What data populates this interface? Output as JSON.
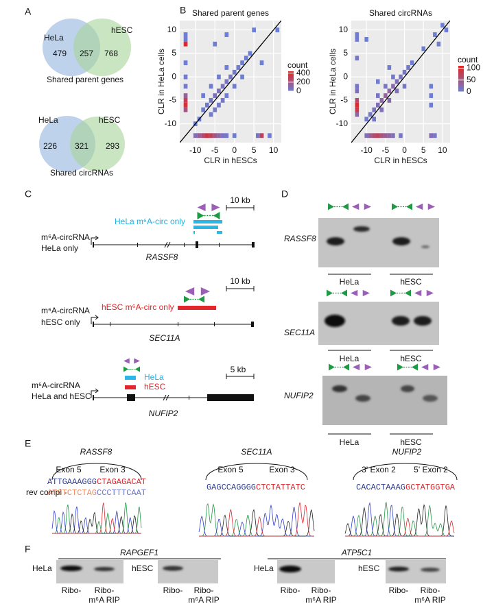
{
  "panel_labels": [
    "A",
    "B",
    "C",
    "D",
    "E",
    "F"
  ],
  "venn": [
    {
      "left_label": "HeLa",
      "right_label": "hESC",
      "left_only": 479,
      "shared": 257,
      "right_only": 768,
      "caption": "Shared parent genes"
    },
    {
      "left_label": "HeLa",
      "right_label": "hESC",
      "left_only": 226,
      "shared": 321,
      "right_only": 293,
      "caption": "Shared circRNAs"
    }
  ],
  "chart_data": [
    {
      "type": "heatmap",
      "title": "Shared parent genes",
      "x_label": "CLR in hESCs",
      "y_label": "CLR in HeLa cells",
      "xlim": [
        -14,
        12
      ],
      "ylim": [
        -14,
        12
      ],
      "xticks": [
        -10,
        -5,
        0,
        5,
        10
      ],
      "yticks": [
        -10,
        -5,
        0,
        5,
        10
      ],
      "legend_title": "count",
      "clim": [
        0,
        440
      ],
      "legend_ticks": [
        0,
        200,
        400
      ],
      "colors": [
        "#6b7fd7",
        "#e8231c"
      ],
      "x": [
        -12.5,
        -12.5,
        -12.5,
        -12.5,
        -12.5,
        -12.5,
        -12.5,
        -12.5,
        -12.5,
        -12.5,
        -10,
        -9,
        -8,
        -7,
        -6,
        -5,
        -4,
        -3,
        -2,
        0,
        6,
        7,
        9,
        -10,
        -9,
        -8,
        -7,
        -6,
        -5,
        -4,
        -3,
        -2,
        -1,
        0,
        1,
        2,
        3,
        4,
        -6,
        -4,
        -2,
        0,
        -8,
        -6,
        -4,
        -2,
        2,
        -3,
        -5,
        11,
        7,
        -5,
        -2,
        5
      ],
      "y": [
        9,
        8,
        7,
        3,
        0,
        -2,
        -4,
        -5,
        -6,
        -7,
        -12.5,
        -12.5,
        -12.5,
        -12.5,
        -12.5,
        -12.5,
        -12.5,
        -12.5,
        -12.5,
        -12.5,
        -12.5,
        -12.5,
        -12.5,
        -10,
        -9,
        -7,
        -6,
        -5,
        -4,
        -3,
        -2,
        -1,
        0,
        1,
        2,
        3,
        4,
        5,
        -8,
        -6,
        -4,
        -2,
        -4,
        -2,
        0,
        2,
        0,
        -5,
        -7,
        10,
        3,
        7,
        9,
        10
      ],
      "values": [
        10,
        20,
        400,
        10,
        20,
        30,
        150,
        300,
        380,
        200,
        80,
        150,
        250,
        350,
        300,
        200,
        120,
        60,
        30,
        10,
        50,
        300,
        10,
        5,
        8,
        15,
        25,
        40,
        60,
        70,
        60,
        50,
        40,
        30,
        20,
        12,
        8,
        5,
        20,
        30,
        25,
        15,
        15,
        15,
        10,
        8,
        10,
        35,
        25,
        3,
        3,
        3,
        3,
        3
      ]
    },
    {
      "type": "heatmap",
      "title": "Shared circRNAs",
      "x_label": "CLR in hESCs",
      "y_label": "CLR in HeLa cells",
      "xlim": [
        -14,
        12
      ],
      "ylim": [
        -14,
        12
      ],
      "xticks": [
        -10,
        -5,
        0,
        5,
        10
      ],
      "yticks": [
        -10,
        -5,
        0,
        5,
        10
      ],
      "legend_title": "count",
      "clim": [
        0,
        110
      ],
      "legend_ticks": [
        0,
        50,
        100
      ],
      "colors": [
        "#6b7fd7",
        "#e8231c"
      ],
      "x": [
        -12.5,
        -12.5,
        -12.5,
        -12.5,
        -12.5,
        -12.5,
        -12.5,
        -12.5,
        -12.5,
        -10,
        -9,
        -8,
        -7,
        -6,
        -5,
        -4,
        -3,
        -1,
        7,
        8,
        -10,
        -9,
        -8,
        -7,
        -6,
        -5,
        -4,
        -3,
        -2,
        -1,
        0,
        1,
        2,
        -6,
        -4,
        -2,
        -7,
        -5,
        -3,
        0,
        -8,
        5,
        8,
        10,
        11,
        9,
        -7,
        -4,
        7,
        7,
        7,
        -10
      ],
      "y": [
        9,
        8,
        4,
        -2,
        -3,
        -5,
        -6,
        -7,
        -8,
        -12.5,
        -12.5,
        -12.5,
        -12.5,
        -12.5,
        -12.5,
        -12.5,
        -12.5,
        -12.5,
        -12.5,
        -12.5,
        -9,
        -8,
        -7,
        -6,
        -5,
        -4,
        -3,
        -2,
        -1,
        0,
        1,
        2,
        3,
        -7,
        -5,
        -3,
        -4,
        -2,
        0,
        -2,
        -9,
        6,
        9,
        11,
        10,
        7,
        -1,
        2,
        -2,
        -4,
        -6,
        8
      ],
      "values": [
        5,
        5,
        10,
        10,
        20,
        60,
        100,
        80,
        30,
        20,
        40,
        60,
        70,
        50,
        40,
        30,
        20,
        10,
        20,
        10,
        5,
        8,
        12,
        20,
        30,
        35,
        30,
        25,
        20,
        12,
        10,
        6,
        4,
        18,
        22,
        18,
        12,
        12,
        8,
        8,
        8,
        3,
        3,
        3,
        3,
        3,
        4,
        4,
        3,
        3,
        3,
        3
      ]
    }
  ],
  "gene_models": [
    {
      "label": [
        "m⁶A-circRNA",
        "HeLa only"
      ],
      "gene": "RASSF8",
      "scale": "10 kb",
      "circ_label": "HeLa m⁶A-circ only"
    },
    {
      "label": [
        "m⁶A-circRNA",
        "hESC only"
      ],
      "gene": "SEC11A",
      "scale": "10 kb",
      "circ_label": "hESC m⁶A-circ only"
    },
    {
      "label": [
        "m⁶A-circRNA",
        "HeLa and hESC"
      ],
      "gene": "NUFIP2",
      "scale": "5 kb",
      "circ_labels": [
        "HeLa",
        "hESC"
      ]
    }
  ],
  "gels": {
    "genes": [
      "RASSF8",
      "SEC11A",
      "NUFIP2"
    ],
    "groups": [
      "HeLa",
      "hESC"
    ]
  },
  "sequencing": [
    {
      "gene": "RASSF8",
      "exons": [
        "Exon 5",
        "Exon 3"
      ],
      "sequence": [
        "ATTGAAAGGG",
        "CTAGAGACAT"
      ],
      "rev_compl_label": "rev compl -",
      "rev_compl": [
        "ATGTCTCTAG",
        "CCCTTTCAAT"
      ]
    },
    {
      "gene": "SEC11A",
      "exons": [
        "Exon 5",
        "Exon 3"
      ],
      "sequence": [
        "GAGCCAGGGG",
        "CTCTATTATC"
      ]
    },
    {
      "gene": "NUFIP2",
      "exons": [
        "3' Exon 2",
        "5' Exon 2"
      ],
      "sequence": [
        "CACACTAAAG",
        "GCTATGGTGA"
      ]
    }
  ],
  "rip": {
    "genes": [
      "RAPGEF1",
      "ATP5C1"
    ],
    "cells": [
      "HeLa",
      "hESC"
    ],
    "lanes": [
      "Ribo-",
      "Ribo-",
      "m⁶A RIP"
    ]
  }
}
